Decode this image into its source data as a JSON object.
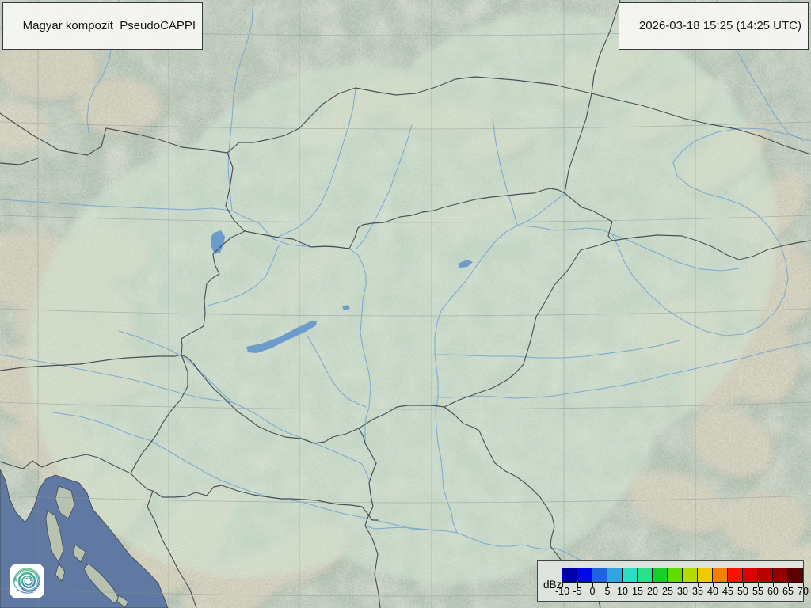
{
  "header": {
    "product_label": "Magyar kompozit  PseudoCAPPI",
    "timestamp_label": "2026-03-18 15:25 (14:25 UTC)"
  },
  "legend": {
    "unit_label": "dBz",
    "ticks": [
      "-10",
      "-5",
      "0",
      "5",
      "10",
      "15",
      "20",
      "25",
      "30",
      "35",
      "40",
      "45",
      "50",
      "55",
      "60",
      "65",
      "70"
    ],
    "cell_colors": [
      "#0000a5",
      "#0008e8",
      "#2063dc",
      "#32a5e0",
      "#2cdcc4",
      "#2cde8a",
      "#18ce2e",
      "#62dc00",
      "#b4dc00",
      "#eec800",
      "#f57e00",
      "#fc1000",
      "#de0303",
      "#b80000",
      "#930000",
      "#5c0000"
    ]
  },
  "map": {
    "colors": {
      "land": "#b2c3b4",
      "coverage_tint": "#d2e6d4",
      "sea": "#5f79a2",
      "river": "#79a7d2",
      "lake": "#6b9cca",
      "border": "#3f444b",
      "graticule": "#858f87",
      "ridge_highlight": "#ddd5c0",
      "ridge_shadow": "#93a394"
    }
  },
  "logo": {
    "colors": {
      "green": "#45b06a",
      "teal": "#2fa093",
      "blue": "#3579b0",
      "background": "#ffffff"
    }
  }
}
